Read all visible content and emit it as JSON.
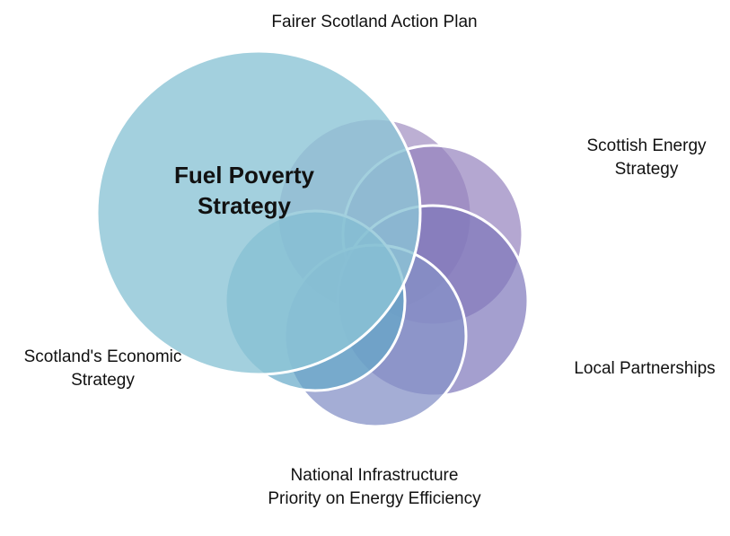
{
  "center": {
    "label": "Fuel Poverty Strategy"
  },
  "nodes": [
    {
      "label": "Fairer Scotland Action Plan"
    },
    {
      "label": "Scottish Energy Strategy"
    },
    {
      "label": "Local Partnerships"
    },
    {
      "label": "National Infrastructure Priority on Energy Efficiency"
    },
    {
      "label": "Scotland's Economic Strategy"
    }
  ]
}
